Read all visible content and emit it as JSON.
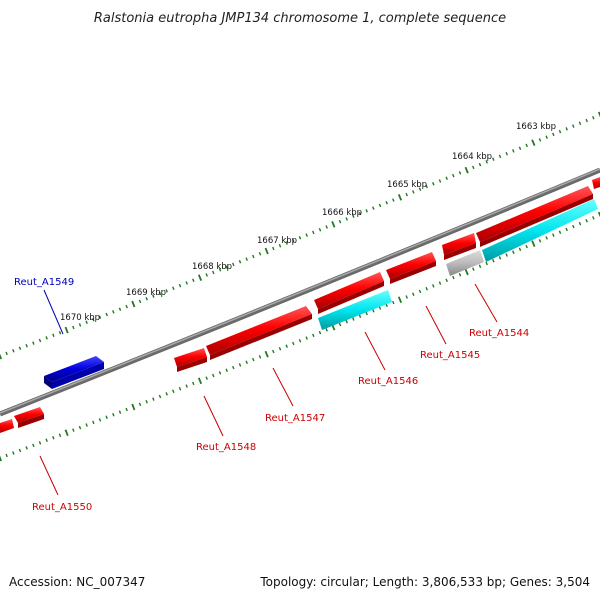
{
  "title": "Ralstonia eutropha JMP134 chromosome 1, complete sequence",
  "footer": {
    "accession": "Accession: NC_007347",
    "topology": "Topology: circular; Length: 3,806,533 bp; Genes: 3,504"
  },
  "colors": {
    "background": "#ffffff",
    "backbone": "#808080",
    "tick": "#1f7a1f",
    "gene_forward": "#ff0000",
    "gene_reverse_blue": "#0000dd",
    "gene_cyan": "#00e5ee",
    "gene_gray": "#bbbbbb",
    "label_red": "#cc0000",
    "label_blue": "#0000bb"
  },
  "tick_labels": [
    "1663 kbp",
    "1664 kbp",
    "1665 kbp",
    "1666 kbp",
    "1667 kbp",
    "1668 kbp",
    "1669 kbp",
    "1670 kbp"
  ],
  "gene_labels": [
    {
      "name": "Reut_A1544",
      "color": "label_red"
    },
    {
      "name": "Reut_A1545",
      "color": "label_red"
    },
    {
      "name": "Reut_A1546",
      "color": "label_red"
    },
    {
      "name": "Reut_A1547",
      "color": "label_red"
    },
    {
      "name": "Reut_A1548",
      "color": "label_red"
    },
    {
      "name": "Reut_A1549",
      "color": "label_blue"
    },
    {
      "name": "Reut_A1550",
      "color": "label_red"
    }
  ]
}
